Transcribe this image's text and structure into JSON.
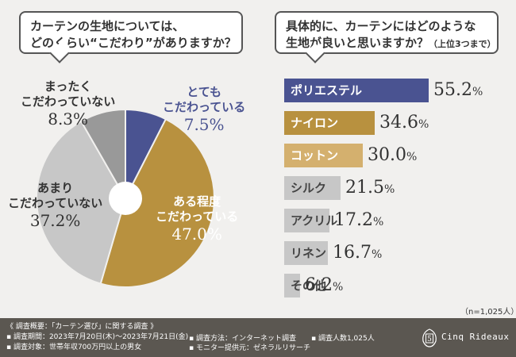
{
  "question1": {
    "line1": "カーテンの生地については、",
    "line2": "どのくらい“こだわり”がありますか？"
  },
  "question2": {
    "line1": "具体的に、カーテンにはどのような",
    "line2": "生地が良いと思いますか？",
    "note": "（上位3つまで）"
  },
  "colors": {
    "navy": "#4a5391",
    "gold": "#b8913f",
    "tan": "#d4b06e",
    "light_gray": "#c7c7c7",
    "mid_gray": "#999999"
  },
  "chart_data": [
    {
      "type": "pie",
      "title": "カーテンの生地については、どのくらい“こだわり”がありますか？",
      "slices": [
        {
          "label": "とても こだわっている",
          "line1": "とても",
          "line2": "こだわっている",
          "value": 7.5,
          "pct": "7.5%",
          "color": "#4a5391"
        },
        {
          "label": "ある程度 こだわっている",
          "line1": "ある程度",
          "line2": "こだわっている",
          "value": 47.0,
          "pct": "47.0%",
          "color": "#b8913f"
        },
        {
          "label": "あまり こだわっていない",
          "line1": "あまり",
          "line2": "こだわっていない",
          "value": 37.2,
          "pct": "37.2%",
          "color": "#c7c7c7"
        },
        {
          "label": "まったく こだわっていない",
          "line1": "まったく",
          "line2": "こだわっていない",
          "value": 8.3,
          "pct": "8.3%",
          "color": "#999999"
        }
      ]
    },
    {
      "type": "bar",
      "orientation": "horizontal",
      "title": "具体的に、カーテンにはどのような生地が良いと思いますか？（上位3つまで）",
      "categories": [
        "ポリエステル",
        "ナイロン",
        "コットン",
        "シルク",
        "アクリル",
        "リネン",
        "その他"
      ],
      "values": [
        55.2,
        34.6,
        30.0,
        21.5,
        17.2,
        16.7,
        6.2
      ],
      "labels": [
        "55.2%",
        "34.6%",
        "30.0%",
        "21.5%",
        "17.2%",
        "16.7%",
        "6.2%"
      ],
      "colors": [
        "#4a5391",
        "#b8913f",
        "#d4b06e",
        "#c7c7c7",
        "#c7c7c7",
        "#c7c7c7",
        "#c7c7c7"
      ],
      "xlim": [
        0,
        60
      ]
    }
  ],
  "sample_note": "（n=1,025人）",
  "footer": {
    "overview": "《 調査概要：「カーテン選び」に関する調査 》",
    "period": "▪ 調査期間：2023年7月20日(木)～2023年7月21日(金)",
    "target": "▪ 調査対象：世帯年収700万円以上の男女",
    "method": "▪ 調査方法：インターネット調査",
    "provider": "▪ モニター提供元：ゼネラルリサーチ",
    "count": "▪ 調査人数1,025人",
    "brand": "Cinq Rideaux",
    "logo_mark": "5"
  }
}
